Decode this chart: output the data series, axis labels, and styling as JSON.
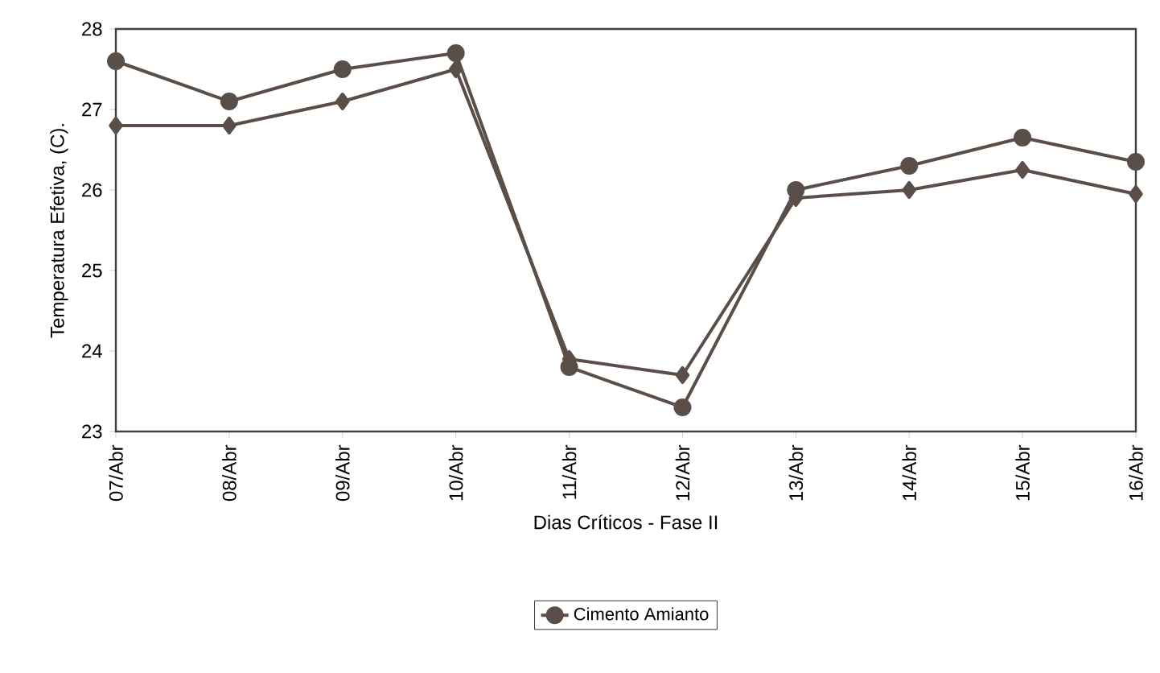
{
  "chart_data": {
    "type": "line",
    "xlabel": "Dias Críticos - Fase II",
    "ylabel": "Temperatura Efetiva, (C).",
    "categories": [
      "07/Abr",
      "08/Abr",
      "09/Abr",
      "10/Abr",
      "11/Abr",
      "12/Abr",
      "13/Abr",
      "14/Abr",
      "15/Abr",
      "16/Abr"
    ],
    "series": [
      {
        "name": "Cimento Amianto",
        "color": "#5a4e48",
        "marker": "circle",
        "values": [
          27.6,
          27.1,
          27.5,
          27.7,
          23.8,
          23.3,
          26.0,
          26.3,
          26.65,
          26.35
        ]
      },
      {
        "color": "#5a4e48",
        "marker": "diamond",
        "values": [
          26.8,
          26.8,
          27.1,
          27.5,
          23.9,
          23.7,
          25.9,
          26.0,
          26.25,
          25.95
        ]
      }
    ],
    "ylim": [
      23,
      28
    ],
    "yticks": [
      23,
      24,
      25,
      26,
      27,
      28
    ],
    "grid": false,
    "legend": "bottom",
    "line_style": "solid"
  }
}
